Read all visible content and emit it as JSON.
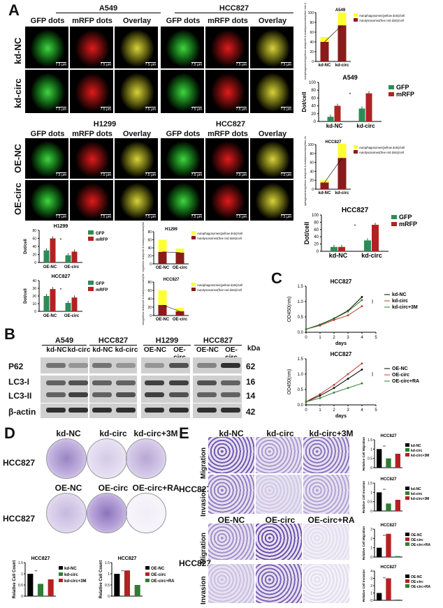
{
  "panels": {
    "A": {
      "label": "A",
      "top_headers": {
        "left_cell": "A549",
        "right_cell": "HCC827",
        "left_lower": "H1299",
        "right_lower": "HCC827"
      },
      "columns": [
        "GFP dots",
        "mRFP dots",
        "Overlay"
      ],
      "rows": [
        "kd-NC",
        "kd-circ",
        "OE-NC",
        "OE-circ"
      ],
      "scale_bar": "7.5 μm"
    },
    "B": {
      "label": "B",
      "groups": [
        "A549",
        "HCC827",
        "H1299",
        "HCC827"
      ],
      "lanes": [
        "kd-NC",
        "kd-circ",
        "kd-NC",
        "kd-circ",
        "OE-NC",
        "OE-circ",
        "OE-NC",
        "OE-circ"
      ],
      "proteins": [
        "P62",
        "LC3-I",
        "LC3-II",
        "β-actin"
      ],
      "kda_label": "kDa",
      "kda_values": [
        "62",
        "16",
        "14",
        "42"
      ]
    },
    "C": {
      "label": "C"
    },
    "D": {
      "label": "D",
      "columns_top": [
        "kd-NC",
        "kd-circ",
        "kd-circ+3M"
      ],
      "columns_bottom": [
        "OE-NC",
        "OE-circ",
        "OE-circ+RA"
      ],
      "row_label": "HCC827"
    },
    "E": {
      "label": "E",
      "columns_top": [
        "kd-NC",
        "kd-circ",
        "kd-circ+3M"
      ],
      "columns_bottom": [
        "OE-NC",
        "OE-circ",
        "OE-circ+RA"
      ],
      "row_label": "HCC827",
      "sub_rows": [
        "Migration",
        "Invasion"
      ]
    }
  },
  "colors": {
    "green": "#2e8b57",
    "red": "#b22222",
    "yellow": "#ffff33",
    "darkred": "#8b1a1a",
    "black": "#000000"
  },
  "chart_data": [
    {
      "id": "a549_stack",
      "type": "bar",
      "title": "A549",
      "ylabel": "Autophagosomes(yellow dots)/cell & Autolysosomes(free red dots)/cell",
      "categories": [
        "kd-NC",
        "kd-circ"
      ],
      "ylim": [
        0,
        100
      ],
      "series": [
        {
          "name": "Autophagosomes(yellow dots)/cell",
          "values": [
            10,
            26
          ]
        },
        {
          "name": "Autolysosomes(free red dots)/cell",
          "values": [
            40,
            74
          ]
        }
      ]
    },
    {
      "id": "a549_dot",
      "type": "bar",
      "title": "A549",
      "ylabel": "Dot/cell",
      "categories": [
        "kd-NC",
        "kd-circ"
      ],
      "ylim": [
        0,
        100
      ],
      "series": [
        {
          "name": "GFP",
          "values": [
            12,
            33
          ]
        },
        {
          "name": "mRFP",
          "values": [
            40,
            72
          ]
        }
      ]
    },
    {
      "id": "hcc827_stack",
      "type": "bar",
      "title": "HCC827",
      "ylabel": "Autophagosomes(yellow dots)/cell & Autolysosomes(free red dots)/cell",
      "categories": [
        "kd-NC",
        "kd-circ"
      ],
      "ylim": [
        0,
        100
      ],
      "series": [
        {
          "name": "Autophagosomes(yellow dots)/cell",
          "values": [
            5,
            32
          ]
        },
        {
          "name": "Autolysosomes(free red dots)/cell",
          "values": [
            15,
            70
          ]
        }
      ]
    },
    {
      "id": "hcc827_dot",
      "type": "bar",
      "title": "HCC827",
      "ylabel": "Dot/cell",
      "categories": [
        "kd-NC",
        "kd-circ"
      ],
      "ylim": [
        0,
        100
      ],
      "series": [
        {
          "name": "GFP",
          "values": [
            12,
            30
          ]
        },
        {
          "name": "mRFP",
          "values": [
            12,
            73
          ]
        }
      ]
    },
    {
      "id": "h1299_dot",
      "type": "bar",
      "title": "H1299",
      "ylabel": "Dot/cell",
      "categories": [
        "OE-NC",
        "OE-circ"
      ],
      "ylim": [
        0,
        80
      ],
      "series": [
        {
          "name": "GFP",
          "values": [
            30,
            18
          ]
        },
        {
          "name": "mRFP",
          "values": [
            60,
            27
          ]
        }
      ]
    },
    {
      "id": "h1299_stack",
      "type": "bar",
      "title": "H1299",
      "ylabel": "Autophagosomes(yellow dots)/cell & Autolysosomes(free red dots)/cell",
      "categories": [
        "OE-NC",
        "OE-circ"
      ],
      "ylim": [
        0,
        80
      ],
      "series": [
        {
          "name": "Autophagosomes(yellow dots)/cell",
          "values": [
            30,
            10
          ]
        },
        {
          "name": "Autolysosomes(free red dots)/cell",
          "values": [
            30,
            28
          ]
        }
      ]
    },
    {
      "id": "hcc827b_dot",
      "type": "bar",
      "title": "HCC827",
      "ylabel": "Dot/cell",
      "categories": [
        "OE-NC",
        "OE-circ"
      ],
      "ylim": [
        0,
        40
      ],
      "series": [
        {
          "name": "GFP",
          "values": [
            20,
            11
          ]
        },
        {
          "name": "mRFP",
          "values": [
            29,
            18
          ]
        }
      ]
    },
    {
      "id": "hcc827b_stack",
      "type": "bar",
      "title": "HCC827",
      "ylabel": "Autophagosomes(yellow dots)/cell & Autolysosomes(free red dots)/cell",
      "categories": [
        "OE-NC",
        "OE-circ"
      ],
      "ylim": [
        0,
        80
      ],
      "series": [
        {
          "name": "Autophagosomes(yellow dots)/cell",
          "values": [
            35,
            8
          ]
        },
        {
          "name": "Autolysosomes(free red dots)/cell",
          "values": [
            25,
            10
          ]
        }
      ]
    },
    {
      "id": "c_line_kd",
      "type": "line",
      "title": "HCC827",
      "xlabel": "days",
      "ylabel": "OD450(nm)",
      "xlim": [
        0,
        5
      ],
      "ylim": [
        0,
        1.5
      ],
      "x": [
        0,
        1,
        2,
        3,
        4
      ],
      "series": [
        {
          "name": "kd-NC",
          "values": [
            0.1,
            0.25,
            0.45,
            0.7,
            1.15
          ]
        },
        {
          "name": "kd-circ",
          "values": [
            0.1,
            0.22,
            0.4,
            0.55,
            0.85
          ]
        },
        {
          "name": "kd-circ+3M",
          "values": [
            0.1,
            0.24,
            0.44,
            0.68,
            1.05
          ]
        }
      ]
    },
    {
      "id": "c_line_oe",
      "type": "line",
      "title": "HCC827",
      "xlabel": "days",
      "ylabel": "OD450(nm)",
      "xlim": [
        0,
        5
      ],
      "ylim": [
        0,
        1.5
      ],
      "x": [
        0,
        1,
        2,
        3,
        4
      ],
      "series": [
        {
          "name": "OE-NC",
          "values": [
            0.1,
            0.3,
            0.55,
            0.85,
            1.15
          ]
        },
        {
          "name": "OE-circ",
          "values": [
            0.1,
            0.35,
            0.65,
            1.0,
            1.35
          ]
        },
        {
          "name": "OE-circ+RA",
          "values": [
            0.1,
            0.22,
            0.4,
            0.55,
            0.7
          ]
        }
      ]
    },
    {
      "id": "d_kd",
      "type": "bar",
      "title": "HCC827",
      "ylabel": "Relative Cell Count",
      "categories": [
        "kd-NC",
        "kd-circ",
        "kd-circ+3M"
      ],
      "ylim": [
        0,
        1.5
      ],
      "values": [
        1.0,
        0.55,
        0.75
      ],
      "series_names": [
        "kd-NC",
        "kd-circ",
        "kd-circ+3M"
      ]
    },
    {
      "id": "d_oe",
      "type": "bar",
      "title": "HCC827",
      "ylabel": "Relative Cell Count",
      "categories": [
        "OE-NC",
        "OE-circ",
        "OE-circ+RA"
      ],
      "ylim": [
        0,
        1.5
      ],
      "values": [
        1.0,
        1.15,
        0.5
      ],
      "series_names": [
        "OE-NC",
        "OE-circ",
        "OE-circ+RA"
      ]
    },
    {
      "id": "e_mig_kd",
      "type": "bar",
      "title": "HCC827",
      "ylabel": "Relative Cell Migration",
      "categories": [
        "kd-NC",
        "kd-circ",
        "kd-circ+3M"
      ],
      "ylim": [
        0,
        1.5
      ],
      "values": [
        1.0,
        0.5,
        0.75
      ],
      "series_names": [
        "kd-NC",
        "kd-circ",
        "kd-circ+3M"
      ]
    },
    {
      "id": "e_inv_kd",
      "type": "bar",
      "title": "HCC827",
      "ylabel": "Relative Cell Invasion",
      "categories": [
        "kd-NC",
        "kd-circ",
        "kd-circ+3M"
      ],
      "ylim": [
        0,
        1.5
      ],
      "values": [
        1.0,
        0.4,
        0.6
      ],
      "series_names": [
        "kd-NC",
        "kd-circ",
        "kd-circ+3M"
      ]
    },
    {
      "id": "e_mig_oe",
      "type": "bar",
      "title": "HCC827",
      "ylabel": "Relative Cell Migration",
      "categories": [
        "OE-NC",
        "OE-circ",
        "OE-circ+RA"
      ],
      "ylim": [
        0,
        3
      ],
      "values": [
        1.0,
        2.5,
        0.1
      ],
      "series_names": [
        "OE-NC",
        "OE-circ",
        "OE-circ+RA"
      ]
    },
    {
      "id": "e_inv_oe",
      "type": "bar",
      "title": "HCC827",
      "ylabel": "Relative Cell Invasion",
      "categories": [
        "OE-NC",
        "OE-circ",
        "OE-circ+RA"
      ],
      "ylim": [
        0,
        4
      ],
      "values": [
        1.0,
        3.0,
        0.1
      ],
      "series_names": [
        "OE-NC",
        "OE-circ",
        "OE-circ+RA"
      ]
    }
  ]
}
